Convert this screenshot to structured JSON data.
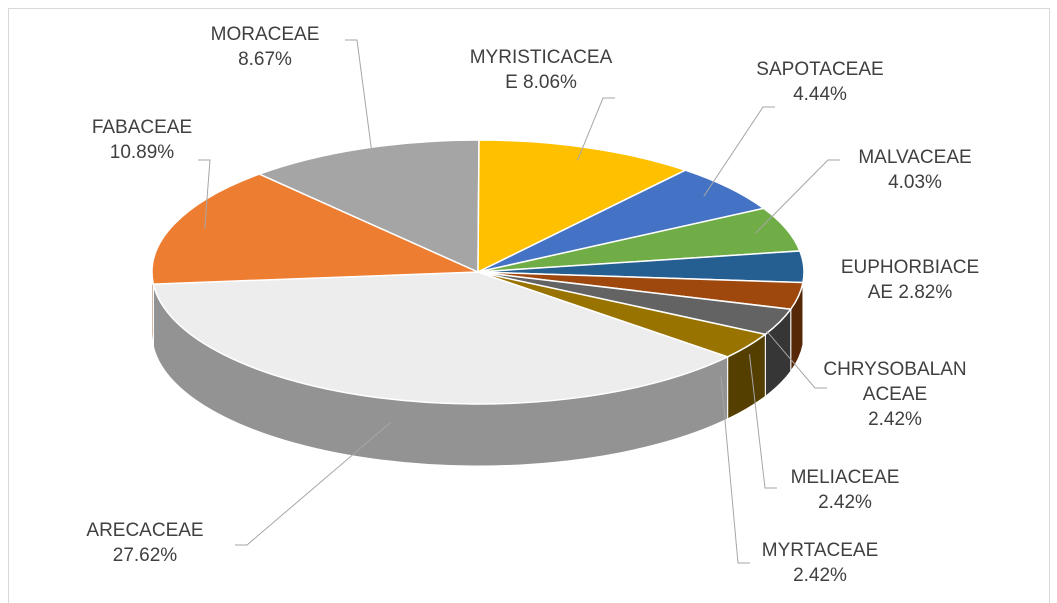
{
  "chart_data": {
    "type": "pie",
    "categories": [
      "ARECACEAE",
      "FABACEAE",
      "MORACEAE",
      "MYRISTICACEAE",
      "SAPOTACEAE",
      "MALVACEAE",
      "EUPHORBIACEAE",
      "CHRYSOBALANACEAE",
      "MELIACEAE",
      "MYRTACEAE"
    ],
    "values": [
      27.62,
      10.89,
      8.67,
      8.06,
      4.44,
      4.03,
      2.82,
      2.42,
      2.42,
      2.42
    ],
    "value_labels": [
      "27.62%",
      "10.89%",
      "8.67%",
      "8.06%",
      "4.44%",
      "4.03%",
      "2.82%",
      "2.42%",
      "2.42%",
      "2.42%"
    ],
    "colors": [
      "#ededed",
      "#ed7d31",
      "#a5a5a5",
      "#ffc000",
      "#4472c4",
      "#70ad47",
      "#255e91",
      "#9e480e",
      "#636363",
      "#997300"
    ]
  }
}
